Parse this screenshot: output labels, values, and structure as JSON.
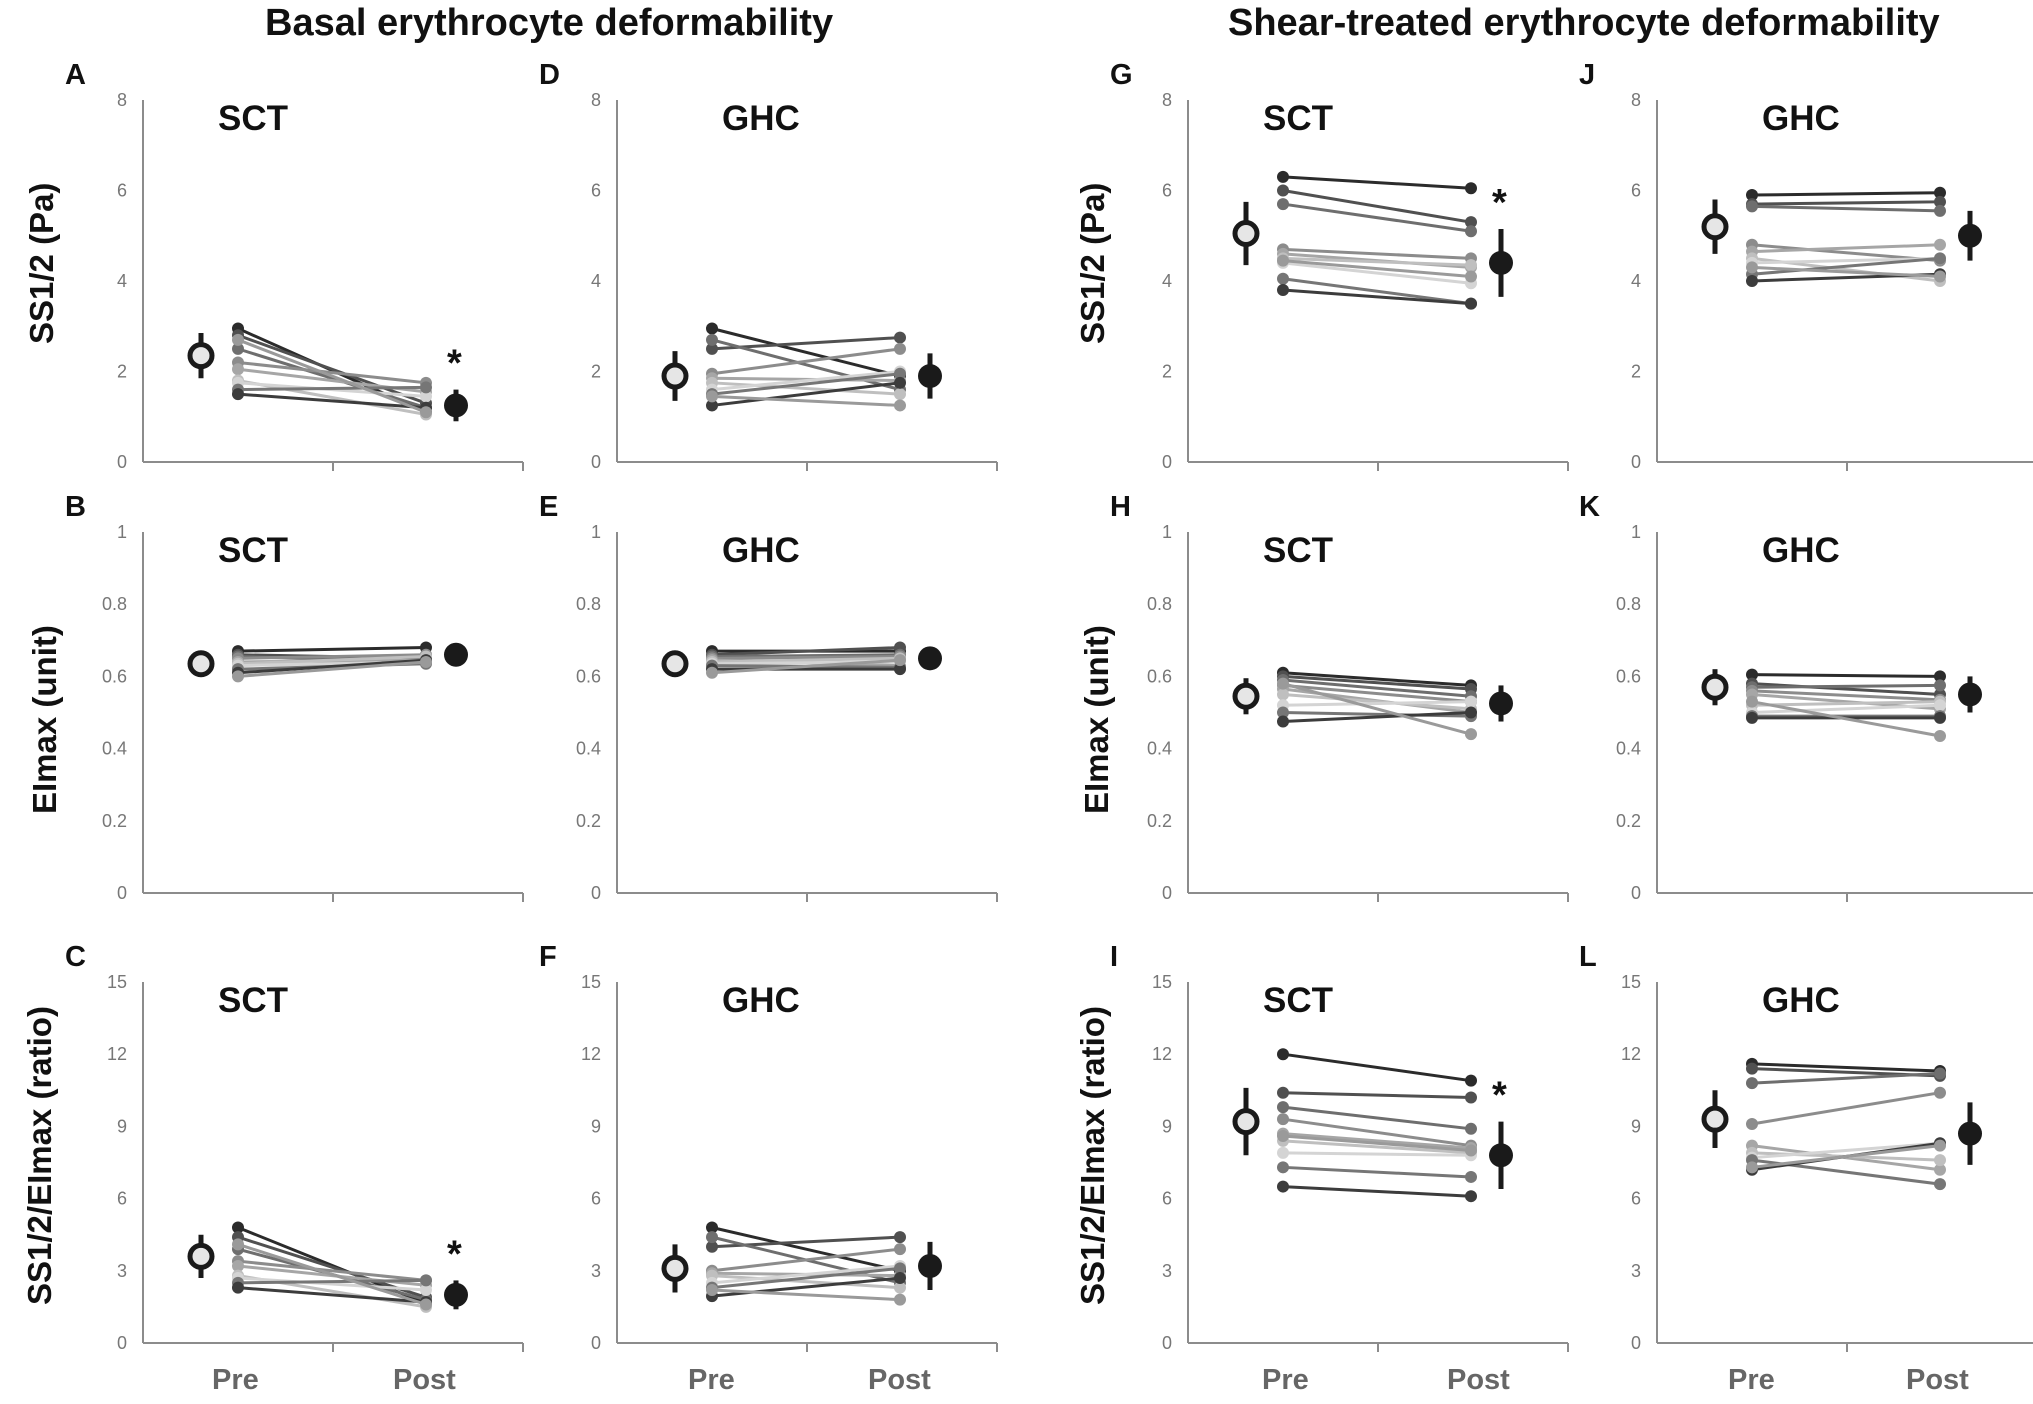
{
  "headers": {
    "left": "Basal erythrocyte deformability",
    "right": "Shear-treated erythrocyte deformability"
  },
  "y_labels": {
    "ss": "SS1/2 (Pa)",
    "ei": "EImax (unit)",
    "ratio": "SS1/2/EImax (ratio)"
  },
  "x_categories": [
    "Pre",
    "Post"
  ],
  "significance_marker": "*",
  "colors": {
    "axis": "#8c8c8c",
    "tick_label": "#777777",
    "pre_mean_fill": "#e6e6e6",
    "post_mean_fill": "#1a1a1a",
    "mean_stroke": "#1a1a1a",
    "subject_shades": [
      "#2b2b2b",
      "#505050",
      "#6e6e6e",
      "#8c8c8c",
      "#a6a6a6",
      "#bfbfbf",
      "#d4d4d4",
      "#767676",
      "#3c3c3c",
      "#9a9a9a"
    ]
  },
  "chart_data": [
    {
      "panel": "A",
      "group": "SCT",
      "type": "line",
      "xlabel": "",
      "ylabel": "SS1/2 (Pa)",
      "ylim": [
        0,
        8
      ],
      "yticks": [
        "0",
        "2",
        "4",
        "6",
        "8"
      ],
      "subjects": [
        [
          2.95,
          1.1
        ],
        [
          2.8,
          1.3
        ],
        [
          2.5,
          1.2
        ],
        [
          2.2,
          1.75
        ],
        [
          2.05,
          1.55
        ],
        [
          1.8,
          1.05
        ],
        [
          1.75,
          1.45
        ],
        [
          1.6,
          1.65
        ],
        [
          1.5,
          1.2
        ],
        [
          2.7,
          1.1
        ]
      ],
      "mean_pre": 2.35,
      "err_pre": 0.5,
      "mean_post": 1.25,
      "err_post": 0.35,
      "significant": true
    },
    {
      "panel": "D",
      "group": "GHC",
      "type": "line",
      "xlabel": "",
      "ylabel": "",
      "ylim": [
        0,
        8
      ],
      "yticks": [
        "0",
        "2",
        "4",
        "6",
        "8"
      ],
      "subjects": [
        [
          2.95,
          1.9
        ],
        [
          2.5,
          2.75
        ],
        [
          2.7,
          1.6
        ],
        [
          1.95,
          2.5
        ],
        [
          1.85,
          1.8
        ],
        [
          1.75,
          1.5
        ],
        [
          1.6,
          2.0
        ],
        [
          1.5,
          1.95
        ],
        [
          1.25,
          1.75
        ],
        [
          1.45,
          1.25
        ]
      ],
      "mean_pre": 1.9,
      "err_pre": 0.55,
      "mean_post": 1.9,
      "err_post": 0.5,
      "significant": false
    },
    {
      "panel": "G",
      "group": "SCT",
      "type": "line",
      "xlabel": "",
      "ylabel": "SS1/2 (Pa)",
      "ylim": [
        0,
        8
      ],
      "yticks": [
        "0",
        "2",
        "4",
        "6",
        "8"
      ],
      "subjects": [
        [
          6.3,
          6.05
        ],
        [
          6.0,
          5.3
        ],
        [
          5.7,
          5.1
        ],
        [
          4.7,
          4.5
        ],
        [
          4.6,
          4.3
        ],
        [
          4.5,
          4.35
        ],
        [
          4.4,
          3.95
        ],
        [
          4.05,
          3.5
        ],
        [
          3.8,
          3.5
        ],
        [
          4.45,
          4.1
        ]
      ],
      "mean_pre": 5.05,
      "err_pre": 0.7,
      "mean_post": 4.4,
      "err_post": 0.75,
      "significant": true
    },
    {
      "panel": "J",
      "group": "GHC",
      "type": "line",
      "xlabel": "",
      "ylabel": "",
      "ylim": [
        0,
        8
      ],
      "yticks": [
        "0",
        "2",
        "4",
        "6",
        "8"
      ],
      "subjects": [
        [
          5.9,
          5.95
        ],
        [
          5.7,
          5.75
        ],
        [
          5.65,
          5.55
        ],
        [
          4.8,
          4.45
        ],
        [
          4.65,
          4.8
        ],
        [
          4.5,
          4.0
        ],
        [
          4.4,
          4.5
        ],
        [
          4.15,
          4.5
        ],
        [
          4.0,
          4.15
        ],
        [
          4.3,
          4.1
        ]
      ],
      "mean_pre": 5.2,
      "err_pre": 0.6,
      "mean_post": 5.0,
      "err_post": 0.55,
      "significant": false
    },
    {
      "panel": "B",
      "group": "SCT",
      "type": "line",
      "xlabel": "",
      "ylabel": "EImax (unit)",
      "ylim": [
        0,
        1
      ],
      "yticks": [
        "0",
        "0.2",
        "0.4",
        "0.6",
        "0.8",
        "1"
      ],
      "subjects": [
        [
          0.67,
          0.68
        ],
        [
          0.66,
          0.65
        ],
        [
          0.655,
          0.64
        ],
        [
          0.65,
          0.66
        ],
        [
          0.64,
          0.645
        ],
        [
          0.635,
          0.655
        ],
        [
          0.63,
          0.64
        ],
        [
          0.62,
          0.635
        ],
        [
          0.61,
          0.645
        ],
        [
          0.6,
          0.64
        ]
      ],
      "mean_pre": 0.635,
      "err_pre": 0.02,
      "mean_post": 0.66,
      "err_post": 0.02,
      "significant": false
    },
    {
      "panel": "E",
      "group": "GHC",
      "type": "line",
      "xlabel": "",
      "ylabel": "",
      "ylim": [
        0,
        1
      ],
      "yticks": [
        "0",
        "0.2",
        "0.4",
        "0.6",
        "0.8",
        "1"
      ],
      "subjects": [
        [
          0.67,
          0.67
        ],
        [
          0.66,
          0.68
        ],
        [
          0.655,
          0.66
        ],
        [
          0.65,
          0.655
        ],
        [
          0.645,
          0.63
        ],
        [
          0.64,
          0.65
        ],
        [
          0.635,
          0.64
        ],
        [
          0.63,
          0.625
        ],
        [
          0.62,
          0.62
        ],
        [
          0.61,
          0.645
        ]
      ],
      "mean_pre": 0.635,
      "err_pre": 0.02,
      "mean_post": 0.65,
      "err_post": 0.02,
      "significant": false
    },
    {
      "panel": "H",
      "group": "SCT",
      "type": "line",
      "xlabel": "",
      "ylabel": "EImax (unit)",
      "ylim": [
        0,
        1
      ],
      "yticks": [
        "0",
        "0.2",
        "0.4",
        "0.6",
        "0.8",
        "1"
      ],
      "subjects": [
        [
          0.61,
          0.575
        ],
        [
          0.6,
          0.565
        ],
        [
          0.59,
          0.545
        ],
        [
          0.575,
          0.53
        ],
        [
          0.565,
          0.5
        ],
        [
          0.55,
          0.51
        ],
        [
          0.52,
          0.53
        ],
        [
          0.5,
          0.49
        ],
        [
          0.475,
          0.5
        ],
        [
          0.58,
          0.44
        ]
      ],
      "mean_pre": 0.545,
      "err_pre": 0.05,
      "mean_post": 0.525,
      "err_post": 0.05,
      "significant": false
    },
    {
      "panel": "K",
      "group": "GHC",
      "type": "line",
      "xlabel": "",
      "ylabel": "",
      "ylim": [
        0,
        1
      ],
      "yticks": [
        "0",
        "0.2",
        "0.4",
        "0.6",
        "0.8",
        "1"
      ],
      "subjects": [
        [
          0.605,
          0.6
        ],
        [
          0.58,
          0.55
        ],
        [
          0.57,
          0.575
        ],
        [
          0.56,
          0.535
        ],
        [
          0.55,
          0.51
        ],
        [
          0.52,
          0.53
        ],
        [
          0.5,
          0.52
        ],
        [
          0.49,
          0.49
        ],
        [
          0.485,
          0.485
        ],
        [
          0.53,
          0.435
        ]
      ],
      "mean_pre": 0.57,
      "err_pre": 0.05,
      "mean_post": 0.55,
      "err_post": 0.05,
      "significant": false
    },
    {
      "panel": "C",
      "group": "SCT",
      "type": "line",
      "xlabel": "Pre / Post",
      "ylabel": "SS1/2/EImax (ratio)",
      "ylim": [
        0,
        15
      ],
      "yticks": [
        "0",
        "3",
        "6",
        "9",
        "12",
        "15"
      ],
      "subjects": [
        [
          4.8,
          1.65
        ],
        [
          4.4,
          1.9
        ],
        [
          3.9,
          1.8
        ],
        [
          3.4,
          2.6
        ],
        [
          3.2,
          2.4
        ],
        [
          2.8,
          1.5
        ],
        [
          2.7,
          2.2
        ],
        [
          2.5,
          2.6
        ],
        [
          2.3,
          1.7
        ],
        [
          4.1,
          1.6
        ]
      ],
      "mean_pre": 3.6,
      "err_pre": 0.9,
      "mean_post": 2.0,
      "err_post": 0.6,
      "significant": true
    },
    {
      "panel": "F",
      "group": "GHC",
      "type": "line",
      "xlabel": "Pre / Post",
      "ylabel": "",
      "ylim": [
        0,
        15
      ],
      "yticks": [
        "0",
        "3",
        "6",
        "9",
        "12",
        "15"
      ],
      "subjects": [
        [
          4.8,
          3.0
        ],
        [
          4.0,
          4.4
        ],
        [
          4.4,
          2.5
        ],
        [
          3.0,
          3.9
        ],
        [
          2.9,
          2.8
        ],
        [
          2.8,
          2.3
        ],
        [
          2.5,
          3.2
        ],
        [
          2.3,
          3.1
        ],
        [
          1.95,
          2.7
        ],
        [
          2.2,
          1.8
        ]
      ],
      "mean_pre": 3.1,
      "err_pre": 1.0,
      "mean_post": 3.2,
      "err_post": 1.0,
      "significant": false
    },
    {
      "panel": "I",
      "group": "SCT",
      "type": "line",
      "xlabel": "Pre / Post",
      "ylabel": "SS1/2/EImax (ratio)",
      "ylim": [
        0,
        15
      ],
      "yticks": [
        "0",
        "3",
        "6",
        "9",
        "12",
        "15"
      ],
      "subjects": [
        [
          12.0,
          10.9
        ],
        [
          10.4,
          10.2
        ],
        [
          9.8,
          8.9
        ],
        [
          9.3,
          8.2
        ],
        [
          8.7,
          8.1
        ],
        [
          8.4,
          7.9
        ],
        [
          7.9,
          7.8
        ],
        [
          7.3,
          6.9
        ],
        [
          6.5,
          6.1
        ],
        [
          8.6,
          8.0
        ]
      ],
      "mean_pre": 9.2,
      "err_pre": 1.4,
      "mean_post": 7.8,
      "err_post": 1.4,
      "significant": true
    },
    {
      "panel": "L",
      "group": "GHC",
      "type": "line",
      "xlabel": "Pre / Post",
      "ylabel": "",
      "ylim": [
        0,
        15
      ],
      "yticks": [
        "0",
        "3",
        "6",
        "9",
        "12",
        "15"
      ],
      "subjects": [
        [
          11.6,
          11.3
        ],
        [
          11.4,
          11.1
        ],
        [
          10.8,
          11.2
        ],
        [
          9.1,
          10.4
        ],
        [
          8.2,
          7.2
        ],
        [
          7.9,
          7.6
        ],
        [
          7.7,
          8.3
        ],
        [
          7.6,
          6.6
        ],
        [
          7.2,
          8.3
        ],
        [
          7.3,
          8.2
        ]
      ],
      "mean_pre": 9.3,
      "err_pre": 1.2,
      "mean_post": 8.7,
      "err_post": 1.3,
      "significant": false
    }
  ]
}
